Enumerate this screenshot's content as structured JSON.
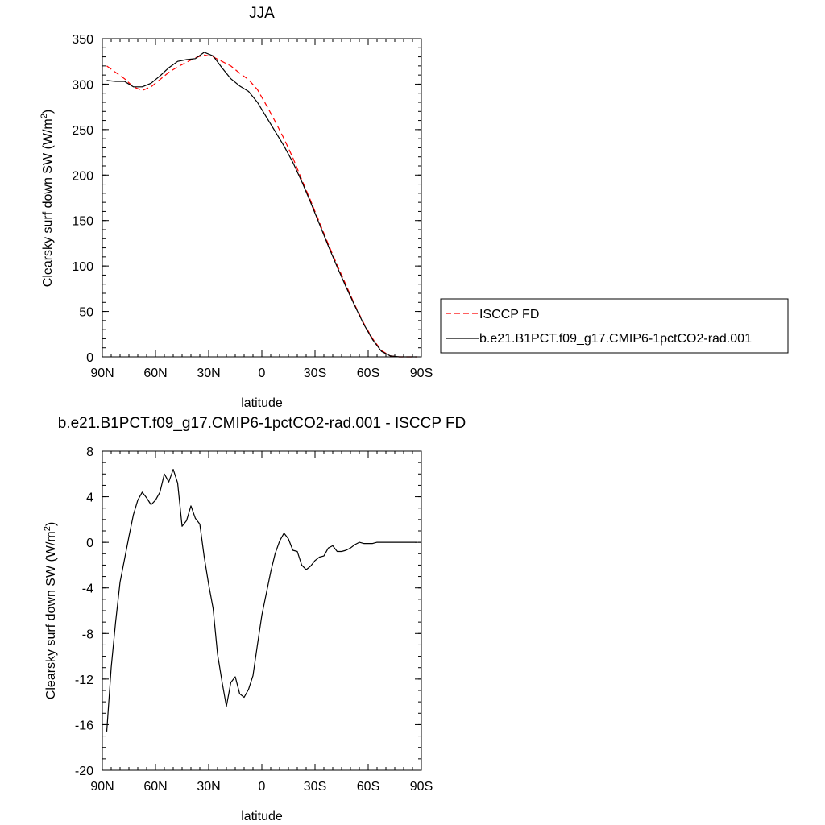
{
  "chart_data": [
    {
      "type": "line",
      "title": "JJA",
      "xlabel": "latitude",
      "ylabel": "Clearsky surf down SW (W/m2)",
      "xlim": [
        90,
        -90
      ],
      "ylim": [
        0,
        350
      ],
      "x_ticks": [
        "90N",
        "60N",
        "30N",
        "0",
        "30S",
        "60S",
        "90S"
      ],
      "y_ticks": [
        "0",
        "50",
        "100",
        "150",
        "200",
        "250",
        "300",
        "350"
      ],
      "legend_position": "right",
      "series": [
        {
          "name": "ISCCP FD",
          "color": "#ff0000",
          "dash": "dashed",
          "x": [
            87.5,
            82.5,
            77.5,
            72.5,
            67.5,
            62.5,
            57.5,
            52.5,
            47.5,
            42.5,
            37.5,
            32.5,
            27.5,
            22.5,
            17.5,
            12.5,
            7.5,
            2.5,
            -2.5,
            -7.5,
            -12.5,
            -17.5,
            -22.5,
            -27.5,
            -32.5,
            -37.5,
            -42.5,
            -47.5,
            -52.5,
            -57.5,
            -62.5,
            -67.5,
            -72.5,
            -77.5,
            -82.5,
            -87.5
          ],
          "y": [
            320,
            313,
            306,
            297,
            293,
            297,
            305,
            313,
            319,
            324,
            329,
            332,
            330,
            325,
            320,
            312,
            305,
            294,
            277,
            259,
            240,
            219,
            195,
            172,
            148,
            124,
            101,
            79,
            57,
            37,
            20,
            7,
            1,
            0,
            0,
            0
          ]
        },
        {
          "name": "b.e21.B1PCT.f09_g17.CMIP6-1pctCO2-rad.001",
          "color": "#000000",
          "dash": "solid",
          "x": [
            87.5,
            82.5,
            77.5,
            72.5,
            67.5,
            62.5,
            57.5,
            52.5,
            47.5,
            42.5,
            37.5,
            32.5,
            27.5,
            22.5,
            17.5,
            12.5,
            7.5,
            2.5,
            -2.5,
            -7.5,
            -12.5,
            -17.5,
            -22.5,
            -27.5,
            -32.5,
            -37.5,
            -42.5,
            -47.5,
            -52.5,
            -57.5,
            -62.5,
            -67.5,
            -72.5,
            -77.5,
            -82.5,
            -87.5
          ],
          "y": [
            304,
            303,
            303,
            297,
            297,
            301,
            309,
            318,
            325,
            327,
            328,
            335,
            331,
            318,
            306,
            298,
            292,
            280,
            264,
            248,
            232,
            214,
            193,
            170,
            146,
            122,
            99,
            77,
            56,
            36,
            19,
            6,
            1,
            0,
            0,
            0
          ]
        }
      ]
    },
    {
      "type": "line",
      "title": "b.e21.B1PCT.f09_g17.CMIP6-1pctCO2-rad.001 - ISCCP FD",
      "xlabel": "latitude",
      "ylabel": "Clearsky surf down SW (W/m2)",
      "xlim": [
        90,
        -90
      ],
      "ylim": [
        -20,
        8
      ],
      "x_ticks": [
        "90N",
        "60N",
        "30N",
        "0",
        "30S",
        "60S",
        "90S"
      ],
      "y_ticks": [
        "-20",
        "-16",
        "-12",
        "-8",
        "-4",
        "0",
        "4",
        "8"
      ],
      "series": [
        {
          "name": "",
          "color": "#000000",
          "dash": "solid",
          "x": [
            87.5,
            85,
            82.5,
            80,
            77.5,
            75,
            72.5,
            70,
            67.5,
            65,
            62.5,
            60,
            57.5,
            55,
            52.5,
            50,
            47.5,
            45,
            42.5,
            40,
            37.5,
            35,
            32.5,
            30,
            27.5,
            25,
            22.5,
            20,
            17.5,
            15,
            12.5,
            10,
            7.5,
            5,
            2.5,
            0,
            -2.5,
            -5,
            -7.5,
            -10,
            -12.5,
            -15,
            -17.5,
            -20,
            -22.5,
            -25,
            -27.5,
            -30,
            -32.5,
            -35,
            -37.5,
            -40,
            -42.5,
            -45,
            -47.5,
            -50,
            -52.5,
            -55,
            -57.5,
            -60,
            -62.5,
            -65,
            -67.5,
            -70,
            -72.5,
            -75,
            -77.5,
            -80,
            -82.5,
            -85,
            -87.5
          ],
          "y": [
            -16.6,
            -11,
            -7,
            -3.5,
            -1.5,
            0.5,
            2.4,
            3.7,
            4.4,
            3.9,
            3.3,
            3.7,
            4.4,
            6.0,
            5.3,
            6.4,
            5.2,
            1.4,
            1.9,
            3.2,
            2.1,
            1.6,
            -1.3,
            -3.7,
            -5.8,
            -9.8,
            -12.2,
            -14.4,
            -12.3,
            -11.8,
            -13.3,
            -13.6,
            -12.9,
            -11.7,
            -9.0,
            -6.4,
            -4.5,
            -2.6,
            -1.0,
            0.1,
            0.8,
            0.3,
            -0.7,
            -0.8,
            -2.0,
            -2.4,
            -2.1,
            -1.6,
            -1.3,
            -1.2,
            -0.5,
            -0.3,
            -0.8,
            -0.8,
            -0.7,
            -0.5,
            -0.2,
            0.0,
            -0.1,
            -0.1,
            -0.1,
            0.0,
            0.0,
            0.0,
            0.0,
            0.0,
            0.0,
            0.0,
            0.0,
            0.0,
            0.0
          ]
        }
      ]
    }
  ]
}
